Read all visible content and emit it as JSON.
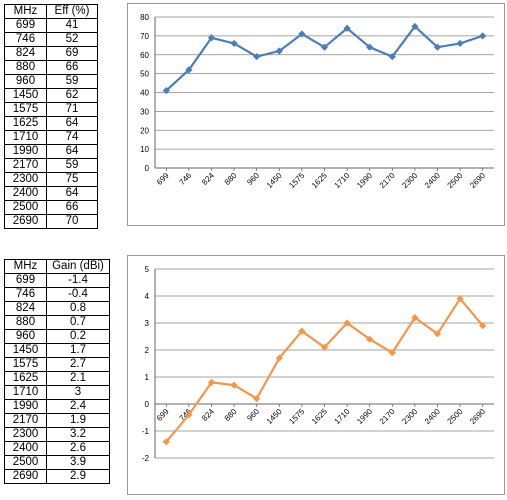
{
  "table_eff": {
    "headers": [
      "MHz",
      "Eff (%)"
    ],
    "rows": [
      [
        "699",
        "41"
      ],
      [
        "746",
        "52"
      ],
      [
        "824",
        "69"
      ],
      [
        "880",
        "66"
      ],
      [
        "960",
        "59"
      ],
      [
        "1450",
        "62"
      ],
      [
        "1575",
        "71"
      ],
      [
        "1625",
        "64"
      ],
      [
        "1710",
        "74"
      ],
      [
        "1990",
        "64"
      ],
      [
        "2170",
        "59"
      ],
      [
        "2300",
        "75"
      ],
      [
        "2400",
        "64"
      ],
      [
        "2500",
        "66"
      ],
      [
        "2690",
        "70"
      ]
    ]
  },
  "table_gain": {
    "headers": [
      "MHz",
      "Gain (dBi)"
    ],
    "rows": [
      [
        "699",
        "-1.4"
      ],
      [
        "746",
        "-0.4"
      ],
      [
        "824",
        "0.8"
      ],
      [
        "880",
        "0.7"
      ],
      [
        "960",
        "0.2"
      ],
      [
        "1450",
        "1.7"
      ],
      [
        "1575",
        "2.7"
      ],
      [
        "1625",
        "2.1"
      ],
      [
        "1710",
        "3"
      ],
      [
        "1990",
        "2.4"
      ],
      [
        "2170",
        "1.9"
      ],
      [
        "2300",
        "3.2"
      ],
      [
        "2400",
        "2.6"
      ],
      [
        "2500",
        "3.9"
      ],
      [
        "2690",
        "2.9"
      ]
    ]
  },
  "chart_data": [
    {
      "type": "line",
      "categories": [
        "699",
        "746",
        "824",
        "880",
        "960",
        "1450",
        "1575",
        "1625",
        "1710",
        "1990",
        "2170",
        "2300",
        "2400",
        "2500",
        "2690"
      ],
      "values": [
        41,
        52,
        69,
        66,
        59,
        62,
        71,
        64,
        74,
        64,
        59,
        75,
        64,
        66,
        70
      ],
      "ylim": [
        0,
        80
      ],
      "yticks": [
        0,
        10,
        20,
        30,
        40,
        50,
        60,
        70,
        80
      ],
      "color": "#4a7ebb",
      "marker": "diamond",
      "grid": true
    },
    {
      "type": "line",
      "categories": [
        "699",
        "746",
        "824",
        "880",
        "960",
        "1450",
        "1575",
        "1625",
        "1710",
        "1990",
        "2170",
        "2300",
        "2400",
        "2500",
        "2690"
      ],
      "values": [
        -1.4,
        -0.4,
        0.8,
        0.7,
        0.2,
        1.7,
        2.7,
        2.1,
        3,
        2.4,
        1.9,
        3.2,
        2.6,
        3.9,
        2.9
      ],
      "ylim": [
        -2,
        5
      ],
      "yticks": [
        -2,
        -1,
        0,
        1,
        2,
        3,
        4,
        5
      ],
      "color": "#f79646",
      "marker": "diamond",
      "grid": true
    }
  ]
}
